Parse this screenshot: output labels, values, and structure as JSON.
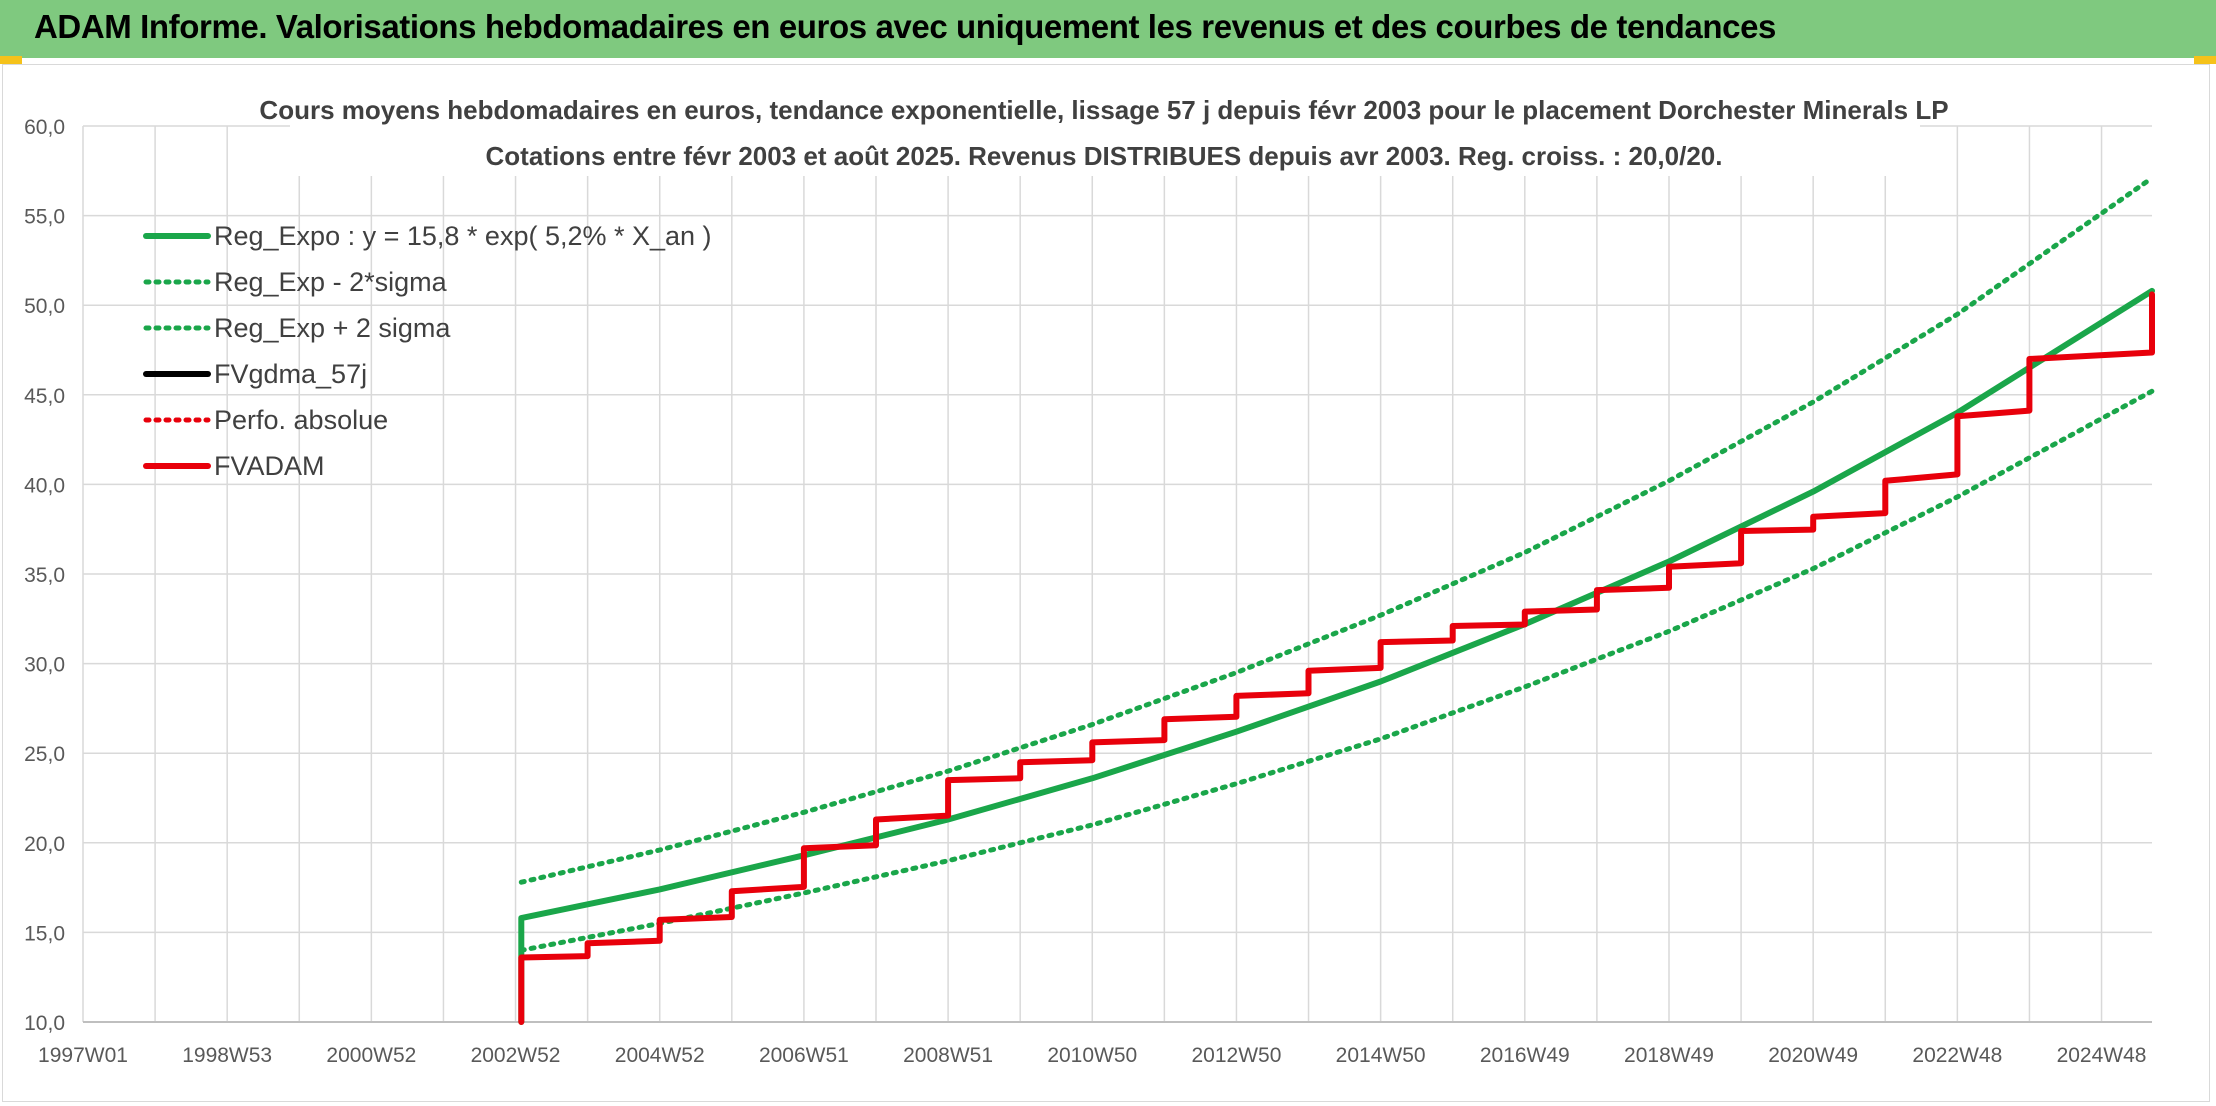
{
  "header": {
    "title": "ADAM Informe. Valorisations hebdomadaires en euros avec uniquement les revenus et des courbes de tendances"
  },
  "chart_data": {
    "type": "line",
    "title": "Cours moyens hebdomadaires en euros, tendance exponentielle, lissage 57 j depuis févr 2003 pour le placement Dorchester Minerals LP",
    "subtitle": "Cotations entre févr 2003 et août 2025. Revenus DISTRIBUES depuis avr 2003. Reg. croiss. : 20,0/20.",
    "xlabel": "",
    "ylabel": "",
    "x_tick_labels": [
      "1997W01",
      "1998W53",
      "2000W52",
      "2002W52",
      "2004W52",
      "2006W51",
      "2008W51",
      "2010W50",
      "2012W50",
      "2014W50",
      "2016W49",
      "2018W49",
      "2020W49",
      "2022W48",
      "2024W48"
    ],
    "x_tick_years": [
      1997.0,
      1999.0,
      2001.0,
      2003.0,
      2005.0,
      2007.0,
      2009.0,
      2011.0,
      2013.0,
      2015.0,
      2017.0,
      2019.0,
      2021.0,
      2023.0,
      2025.0
    ],
    "xlim": [
      1997.0,
      2025.7
    ],
    "ylim": [
      10,
      60
    ],
    "y_ticks": [
      10,
      15,
      20,
      25,
      30,
      35,
      40,
      45,
      50,
      55,
      60
    ],
    "y_tick_labels": [
      "10,0",
      "15,0",
      "20,0",
      "25,0",
      "30,0",
      "35,0",
      "40,0",
      "45,0",
      "50,0",
      "55,0",
      "60,0"
    ],
    "grid": true,
    "legend_position": "top-left",
    "series": [
      {
        "name": "Reg_Expo : y = 15,8 * exp( 5,2% *  X_an )",
        "color": "#1aa64a",
        "style": "solid",
        "x": [
          2003.08,
          2005,
          2007,
          2009,
          2011,
          2013,
          2015,
          2017,
          2019,
          2021,
          2023,
          2025.7
        ],
        "y": [
          15.8,
          17.4,
          19.3,
          21.3,
          23.6,
          26.2,
          29.0,
          32.2,
          35.7,
          39.6,
          44.0,
          50.8
        ]
      },
      {
        "name": "Reg_Exp - 2*sigma",
        "color": "#1aa64a",
        "style": "dotted",
        "x": [
          2003.08,
          2005,
          2007,
          2009,
          2011,
          2013,
          2015,
          2017,
          2019,
          2021,
          2023,
          2025.7
        ],
        "y": [
          14.0,
          15.5,
          17.2,
          19.0,
          21.0,
          23.3,
          25.8,
          28.7,
          31.8,
          35.3,
          39.3,
          45.2
        ]
      },
      {
        "name": "Reg_Exp + 2 sigma",
        "color": "#1aa64a",
        "style": "dotted",
        "x": [
          2003.08,
          2005,
          2007,
          2009,
          2011,
          2013,
          2015,
          2017,
          2019,
          2021,
          2023,
          2025.7
        ],
        "y": [
          17.8,
          19.6,
          21.7,
          24.0,
          26.6,
          29.5,
          32.7,
          36.2,
          40.2,
          44.6,
          49.5,
          57.1
        ]
      },
      {
        "name": "FVgdma_57j",
        "color": "#000000",
        "style": "solid",
        "x": [
          2003.08,
          2004,
          2005,
          2006,
          2007,
          2008,
          2009,
          2010,
          2011,
          2012,
          2013,
          2014,
          2015,
          2016,
          2017,
          2018,
          2019,
          2020,
          2021,
          2022,
          2023,
          2024,
          2025.7
        ],
        "y": [
          13.6,
          14.4,
          15.7,
          17.3,
          19.7,
          21.3,
          23.5,
          24.5,
          25.6,
          26.9,
          28.2,
          29.6,
          31.2,
          32.1,
          32.9,
          34.1,
          35.4,
          37.4,
          38.2,
          40.2,
          43.8,
          47.0,
          50.6
        ]
      },
      {
        "name": "Perfo. absolue",
        "color": "#e8000b",
        "style": "dotted",
        "x": [
          2003.08,
          2004,
          2005,
          2006,
          2007,
          2008,
          2009,
          2010,
          2011,
          2012,
          2013,
          2014,
          2015,
          2016,
          2017,
          2018,
          2019,
          2020,
          2021,
          2022,
          2023,
          2024,
          2025.7
        ],
        "y": [
          13.6,
          14.4,
          15.7,
          17.3,
          19.7,
          21.3,
          23.5,
          24.5,
          25.6,
          26.9,
          28.2,
          29.6,
          31.2,
          32.1,
          32.9,
          34.1,
          35.4,
          37.4,
          38.2,
          40.2,
          43.8,
          47.0,
          50.6
        ]
      },
      {
        "name": "FVADAM",
        "color": "#e8000b",
        "style": "solid",
        "x": [
          2003.08,
          2004,
          2005,
          2006,
          2007,
          2008,
          2009,
          2010,
          2011,
          2012,
          2013,
          2014,
          2015,
          2016,
          2017,
          2018,
          2019,
          2020,
          2021,
          2022,
          2023,
          2024,
          2025.7
        ],
        "y": [
          13.6,
          14.4,
          15.7,
          17.3,
          19.7,
          21.3,
          23.5,
          24.5,
          25.6,
          26.9,
          28.2,
          29.6,
          31.2,
          32.1,
          32.9,
          34.1,
          35.4,
          37.4,
          38.2,
          40.2,
          43.8,
          47.0,
          50.6
        ]
      }
    ]
  }
}
